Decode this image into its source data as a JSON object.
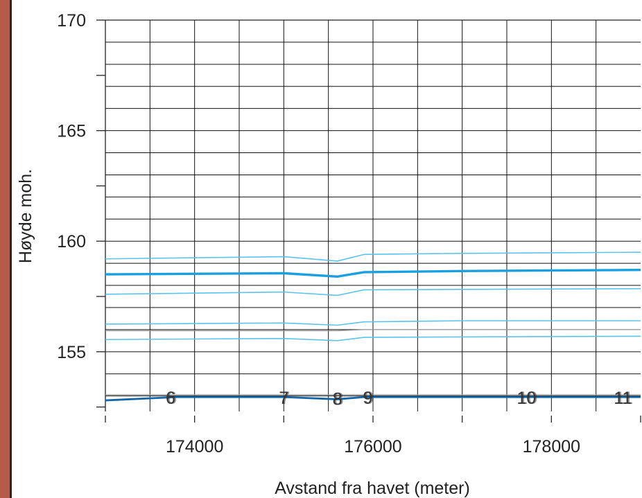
{
  "chart_data": {
    "type": "line",
    "title": "",
    "xlabel": "Avstand fra havet (meter)",
    "ylabel": "Høyde moh.",
    "xlim": [
      173000,
      179000
    ],
    "ylim": [
      152.3,
      170
    ],
    "x_ticks": [
      174000,
      176000,
      178000
    ],
    "y_ticks": [
      155,
      160,
      165,
      170
    ],
    "grid": true,
    "legend": "none",
    "colors": {
      "light_blue": "#5bc4ec",
      "mid_blue": "#1aa0e0",
      "dark_blue": "#1266a8",
      "gray": "#999999",
      "grid": "#111111"
    },
    "series": [
      {
        "color": "light_blue",
        "width": 1.6,
        "points": [
          [
            173000,
            159.2
          ],
          [
            175000,
            159.3
          ],
          [
            175600,
            159.1
          ],
          [
            175900,
            159.4
          ],
          [
            177000,
            159.45
          ],
          [
            179000,
            159.5
          ]
        ]
      },
      {
        "color": "mid_blue",
        "width": 3.4,
        "points": [
          [
            173000,
            158.5
          ],
          [
            175000,
            158.55
          ],
          [
            175600,
            158.4
          ],
          [
            175900,
            158.6
          ],
          [
            177000,
            158.65
          ],
          [
            179000,
            158.7
          ]
        ]
      },
      {
        "color": "light_blue",
        "width": 1.6,
        "points": [
          [
            173000,
            157.6
          ],
          [
            175000,
            157.7
          ],
          [
            175600,
            157.55
          ],
          [
            175900,
            157.8
          ],
          [
            177000,
            157.82
          ],
          [
            179000,
            157.85
          ]
        ]
      },
      {
        "color": "light_blue",
        "width": 1.6,
        "points": [
          [
            173000,
            156.25
          ],
          [
            175000,
            156.3
          ],
          [
            175600,
            156.2
          ],
          [
            175900,
            156.35
          ],
          [
            177000,
            156.4
          ],
          [
            179000,
            156.4
          ]
        ]
      },
      {
        "color": "gray",
        "width": 1.3,
        "points": [
          [
            173000,
            155.95
          ],
          [
            175600,
            155.95
          ],
          [
            175900,
            156.0
          ],
          [
            179000,
            156.0
          ]
        ]
      },
      {
        "color": "light_blue",
        "width": 1.6,
        "points": [
          [
            173000,
            155.55
          ],
          [
            175000,
            155.6
          ],
          [
            175600,
            155.5
          ],
          [
            175900,
            155.65
          ],
          [
            177000,
            155.67
          ],
          [
            179000,
            155.7
          ]
        ]
      },
      {
        "color": "gray",
        "width": 1.3,
        "points": [
          [
            173000,
            153.05
          ],
          [
            179000,
            153.05
          ]
        ]
      },
      {
        "color": "dark_blue",
        "width": 2.8,
        "points": [
          [
            173000,
            152.8
          ],
          [
            173800,
            152.95
          ],
          [
            175000,
            152.95
          ],
          [
            175600,
            152.85
          ],
          [
            175900,
            152.95
          ],
          [
            179000,
            152.95
          ]
        ]
      }
    ],
    "annotations": [
      {
        "text": "6",
        "x": 173730,
        "y": 152.9
      },
      {
        "text": "7",
        "x": 175000,
        "y": 152.9
      },
      {
        "text": "8",
        "x": 175600,
        "y": 152.85
      },
      {
        "text": "9",
        "x": 175940,
        "y": 152.9
      },
      {
        "text": "10",
        "x": 177720,
        "y": 152.9
      },
      {
        "text": "11",
        "x": 178800,
        "y": 152.9
      }
    ]
  }
}
